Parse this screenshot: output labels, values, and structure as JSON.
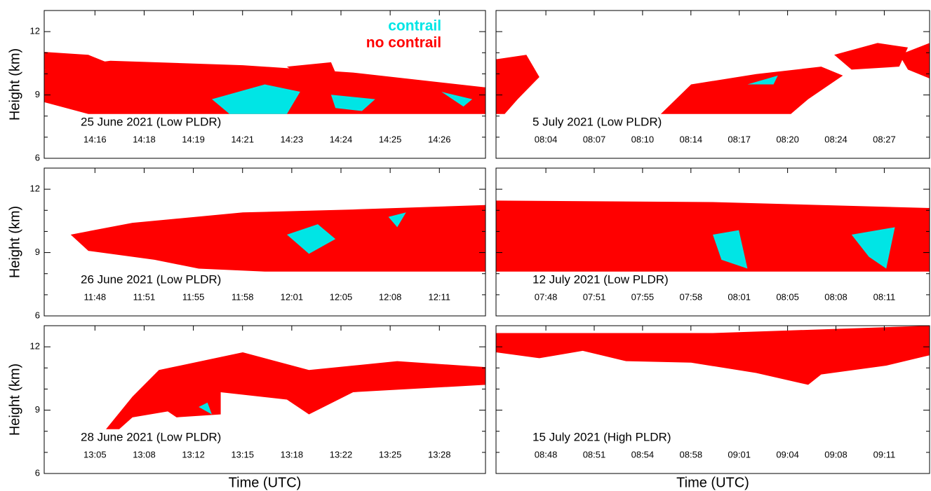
{
  "chart_data": [
    {
      "type": "lidar",
      "title": "25 June 2021 (Low PLDR)",
      "categories": [
        "14:16",
        "14:18",
        "14:19",
        "14:21",
        "14:23",
        "14:24",
        "14:25",
        "14:26"
      ],
      "ylim": [
        6,
        13
      ],
      "yticks": [
        6,
        9,
        12
      ],
      "yminor": [
        7,
        8,
        10,
        11
      ],
      "ylabel": "Height (km)",
      "legend": [
        {
          "name": "contrail",
          "color": "#00e5e5"
        },
        {
          "name": "no contrail",
          "color": "#ff0000"
        }
      ]
    },
    {
      "type": "lidar",
      "title": "5 July 2021 (Low PLDR)",
      "categories": [
        "08:04",
        "08:07",
        "08:10",
        "08:14",
        "08:17",
        "08:20",
        "08:24",
        "08:27"
      ],
      "ylim": [
        6,
        13
      ],
      "yticks": [
        6,
        9,
        12
      ],
      "yminor": [
        7,
        8,
        10,
        11
      ]
    },
    {
      "type": "lidar",
      "title": "26 June 2021 (Low PLDR)",
      "categories": [
        "11:48",
        "11:51",
        "11:55",
        "11:58",
        "12:01",
        "12:05",
        "12:08",
        "12:11"
      ],
      "ylim": [
        6,
        13
      ],
      "yticks": [
        6,
        9,
        12
      ],
      "yminor": [
        7,
        8,
        10,
        11
      ],
      "ylabel": "Height (km)"
    },
    {
      "type": "lidar",
      "title": "12 July 2021 (Low PLDR)",
      "categories": [
        "07:48",
        "07:51",
        "07:55",
        "07:58",
        "08:01",
        "08:05",
        "08:08",
        "08:11"
      ],
      "ylim": [
        6,
        13
      ],
      "yticks": [
        6,
        9,
        12
      ],
      "yminor": [
        7,
        8,
        10,
        11
      ]
    },
    {
      "type": "lidar",
      "title": "28 June 2021 (Low PLDR)",
      "categories": [
        "13:05",
        "13:08",
        "13:12",
        "13:15",
        "13:18",
        "13:22",
        "13:25",
        "13:28"
      ],
      "ylim": [
        6,
        13
      ],
      "yticks": [
        6,
        9,
        12
      ],
      "yminor": [
        7,
        8,
        10,
        11
      ],
      "ylabel": "Height (km)",
      "xlabel": "Time (UTC)"
    },
    {
      "type": "lidar",
      "title": "15 July 2021 (High PLDR)",
      "categories": [
        "08:48",
        "08:51",
        "08:54",
        "08:58",
        "09:01",
        "09:04",
        "09:08",
        "09:11"
      ],
      "ylim": [
        6,
        13
      ],
      "yticks": [
        6,
        9,
        12
      ],
      "yminor": [
        7,
        8,
        10,
        11
      ],
      "xlabel": "Time (UTC)"
    }
  ]
}
